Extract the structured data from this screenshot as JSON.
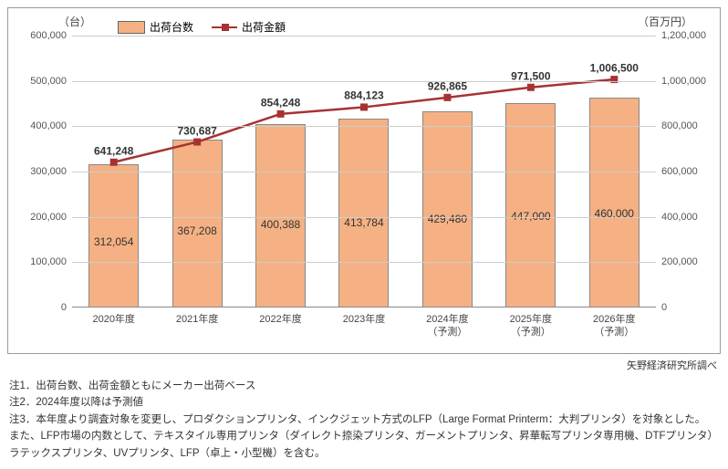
{
  "chart": {
    "type": "bar+line",
    "left_axis_unit": "（台）",
    "right_axis_unit": "（百万円）",
    "legend_bar": "出荷台数",
    "legend_line": "出荷金額",
    "categories": [
      "2020年度",
      "2021年度",
      "2022年度",
      "2023年度",
      "2024年度\n（予測）",
      "2025年度\n（予測）",
      "2026年度\n（予測）"
    ],
    "bar_values": [
      312054,
      367208,
      400388,
      413784,
      429480,
      447000,
      460000
    ],
    "bar_labels": [
      "312,054",
      "367,208",
      "400,388",
      "413,784",
      "429,480",
      "447,000",
      "460,000"
    ],
    "line_values": [
      641248,
      730687,
      854248,
      884123,
      926865,
      971500,
      1006500
    ],
    "line_labels": [
      "641,248",
      "730,687",
      "854,248",
      "884,123",
      "926,865",
      "971,500",
      "1,006,500"
    ],
    "left_ylim": [
      0,
      600000
    ],
    "left_ticks": [
      0,
      100000,
      200000,
      300000,
      400000,
      500000,
      600000
    ],
    "left_tick_labels": [
      "0",
      "100,000",
      "200,000",
      "300,000",
      "400,000",
      "500,000",
      "600,000"
    ],
    "right_ylim": [
      0,
      1200000
    ],
    "right_ticks": [
      0,
      200000,
      400000,
      600000,
      800000,
      1000000,
      1200000
    ],
    "right_tick_labels": [
      "0",
      "200,000",
      "400,000",
      "600,000",
      "800,000",
      "1,000,000",
      "1,200,000"
    ],
    "bar_color": "#f5b183",
    "line_color": "#a83232",
    "grid_color": "#cccccc",
    "background": "#ffffff"
  },
  "source": "矢野経済研究所調べ",
  "notes": {
    "n1": "注1．出荷台数、出荷金額ともにメーカー出荷ベース",
    "n2": "注2．2024年度以降は予測値",
    "n3a": "注3．本年度より調査対象を変更し、プロダクションプリンタ、インクジェット方式のLFP（Large Format Printerm：大判プリンタ）を対象とした。",
    "n3b": "また、LFP市場の内数として、テキスタイル専用プリンタ（ダイレクト捺染プリンタ、ガーメントプリンタ、昇華転写プリンタ専用機、DTFプリンタ）",
    "n3c": "ラテックスプリンタ、UVプリンタ、LFP（卓上・小型機）を含む。"
  }
}
